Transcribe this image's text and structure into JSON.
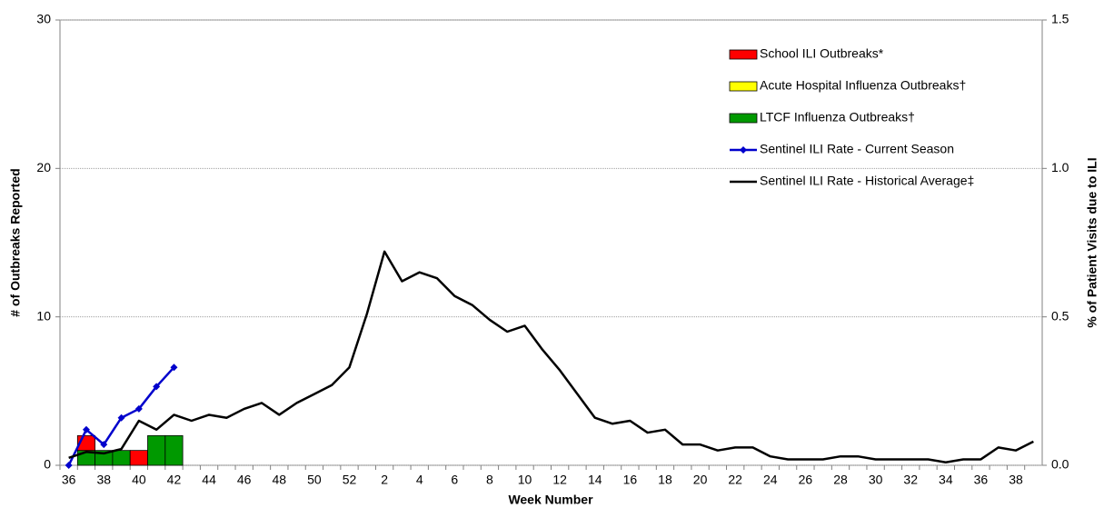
{
  "chart_data": {
    "type": "bar",
    "x_label": "Week Number",
    "y_label": "# of Outbreaks Reported",
    "y2_label": "% of Patient Visits due to ILI",
    "categories": [
      36,
      null,
      38,
      null,
      40,
      null,
      42,
      null,
      44,
      null,
      46,
      null,
      48,
      null,
      50,
      null,
      52,
      null,
      2,
      null,
      4,
      null,
      6,
      null,
      8,
      null,
      10,
      null,
      12,
      null,
      14,
      null,
      16,
      null,
      18,
      null,
      20,
      null,
      22,
      null,
      24,
      null,
      26,
      null,
      28,
      null,
      30,
      null,
      32,
      null,
      34,
      null,
      36,
      null,
      38,
      null
    ],
    "ylim": [
      0,
      30
    ],
    "yticks": [
      0,
      10,
      20,
      30
    ],
    "y2lim": [
      0,
      1.5
    ],
    "y2ticks": [
      {
        "value": 0,
        "label": "0.0"
      },
      0.5,
      {
        "value": 1,
        "label": "1.0"
      },
      1.5
    ],
    "grid": true,
    "legend": "upper right",
    "series": [
      {
        "name": "School ILI Outbreaks*",
        "type": "bar",
        "color": "#ff0000",
        "values": [
          0,
          1,
          0,
          0,
          1,
          0,
          0,
          null,
          null,
          null,
          null,
          null,
          null,
          null,
          null,
          null,
          null,
          null,
          null,
          null,
          null,
          null,
          null,
          null,
          null,
          null,
          null,
          null,
          null,
          null,
          null,
          null,
          null,
          null,
          null,
          null,
          null,
          null,
          null,
          null,
          null,
          null,
          null,
          null,
          null,
          null,
          null,
          null,
          null,
          null,
          null,
          null,
          null,
          null,
          null,
          null
        ]
      },
      {
        "name": "Acute Hospital Influenza Outbreaks†",
        "type": "bar",
        "color": "#ffff00",
        "values": [
          0,
          0,
          0,
          0,
          0,
          0,
          0,
          null,
          null,
          null,
          null,
          null,
          null,
          null,
          null,
          null,
          null,
          null,
          null,
          null,
          null,
          null,
          null,
          null,
          null,
          null,
          null,
          null,
          null,
          null,
          null,
          null,
          null,
          null,
          null,
          null,
          null,
          null,
          null,
          null,
          null,
          null,
          null,
          null,
          null,
          null,
          null,
          null,
          null,
          null,
          null,
          null,
          null,
          null,
          null,
          null
        ]
      },
      {
        "name": "LTCF Influenza Outbreaks†",
        "type": "bar",
        "color": "#009900",
        "values": [
          0,
          1,
          1,
          1,
          0,
          2,
          2,
          null,
          null,
          null,
          null,
          null,
          null,
          null,
          null,
          null,
          null,
          null,
          null,
          null,
          null,
          null,
          null,
          null,
          null,
          null,
          null,
          null,
          null,
          null,
          null,
          null,
          null,
          null,
          null,
          null,
          null,
          null,
          null,
          null,
          null,
          null,
          null,
          null,
          null,
          null,
          null,
          null,
          null,
          null,
          null,
          null,
          null,
          null,
          null,
          null
        ]
      },
      {
        "name": "Sentinel ILI Rate - Current Season",
        "type": "line",
        "axis": "y2",
        "color": "#0000cc",
        "markers": true,
        "values": [
          0,
          0.12,
          0.07,
          0.16,
          0.19,
          0.265,
          0.33,
          null,
          null,
          null,
          null,
          null,
          null,
          null,
          null,
          null,
          null,
          null,
          null,
          null,
          null,
          null,
          null,
          null,
          null,
          null,
          null,
          null,
          null,
          null,
          null,
          null,
          null,
          null,
          null,
          null,
          null,
          null,
          null,
          null,
          null,
          null,
          null,
          null,
          null,
          null,
          null,
          null,
          null,
          null,
          null,
          null,
          null,
          null,
          null,
          null
        ]
      },
      {
        "name": "Sentinel ILI Rate - Historical Average‡",
        "type": "line",
        "axis": "y2",
        "color": "#000000",
        "markers": false,
        "values": [
          0.025,
          0.045,
          0.04,
          0.055,
          0.15,
          0.12,
          0.17,
          0.15,
          0.17,
          0.16,
          0.19,
          0.21,
          0.17,
          0.21,
          0.24,
          0.27,
          0.33,
          0.51,
          0.72,
          0.62,
          0.65,
          0.63,
          0.57,
          0.54,
          0.49,
          0.45,
          0.47,
          0.39,
          0.32,
          0.24,
          0.16,
          0.14,
          0.15,
          0.11,
          0.12,
          0.07,
          0.07,
          0.05,
          0.06,
          0.06,
          0.03,
          0.02,
          0.02,
          0.02,
          0.03,
          0.03,
          0.02,
          0.02,
          0.02,
          0.02,
          0.01,
          0.02,
          0.02,
          0.06,
          0.05,
          0.08
        ]
      }
    ]
  }
}
